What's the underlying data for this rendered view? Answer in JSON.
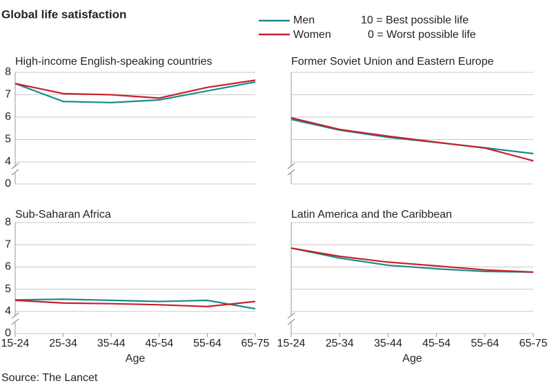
{
  "title": "Global life satisfaction",
  "notes": [
    "10 = Best possible life",
    "0 = Worst possible life"
  ],
  "source": "Source: The Lancet",
  "chart_data": [
    {
      "type": "line",
      "title": "High-income English-speaking countries",
      "ylim": [
        0,
        8
      ],
      "yticks": [
        0,
        4,
        5,
        6,
        7,
        8
      ],
      "y_break": [
        0,
        4
      ],
      "grid": true,
      "series": [
        {
          "name": "Men",
          "color": "#1a8a8c",
          "values": [
            7.5,
            6.7,
            6.65,
            6.77,
            7.17,
            7.57
          ]
        },
        {
          "name": "Women",
          "color": "#c8202a",
          "values": [
            7.5,
            7.05,
            7.0,
            6.85,
            7.33,
            7.65
          ]
        }
      ]
    },
    {
      "type": "line",
      "title": "Former Soviet Union and Eastern Europe",
      "series": [
        {
          "name": "Men",
          "color": "#1a8a8c",
          "values": [
            5.9,
            5.42,
            5.1,
            4.87,
            4.63,
            4.37
          ]
        },
        {
          "name": "Women",
          "color": "#c8202a",
          "values": [
            5.97,
            5.45,
            5.15,
            4.88,
            4.62,
            4.05
          ]
        }
      ]
    },
    {
      "type": "line",
      "title": "Sub-Saharan Africa",
      "x_label": "Age",
      "categories": [
        "15-24",
        "25-34",
        "35-44",
        "45-54",
        "55-64",
        "65-75"
      ],
      "ylim": [
        0,
        8
      ],
      "yticks": [
        0,
        4,
        5,
        6,
        7,
        8
      ],
      "y_break": [
        0,
        4
      ],
      "grid": true,
      "series": [
        {
          "name": "Men",
          "color": "#1a8a8c",
          "values": [
            4.52,
            4.55,
            4.5,
            4.45,
            4.5,
            4.12
          ]
        },
        {
          "name": "Women",
          "color": "#c8202a",
          "values": [
            4.5,
            4.38,
            4.35,
            4.3,
            4.22,
            4.45
          ]
        }
      ]
    },
    {
      "type": "line",
      "title": "Latin America and the Caribbean",
      "x_label": "Age",
      "categories": [
        "15-24",
        "25-34",
        "35-44",
        "45-54",
        "55-64",
        "65-75"
      ],
      "series": [
        {
          "name": "Men",
          "color": "#1a8a8c",
          "values": [
            6.85,
            6.4,
            6.08,
            5.92,
            5.8,
            5.77
          ]
        },
        {
          "name": "Women",
          "color": "#c8202a",
          "values": [
            6.85,
            6.48,
            6.22,
            6.05,
            5.87,
            5.77
          ]
        }
      ]
    }
  ]
}
